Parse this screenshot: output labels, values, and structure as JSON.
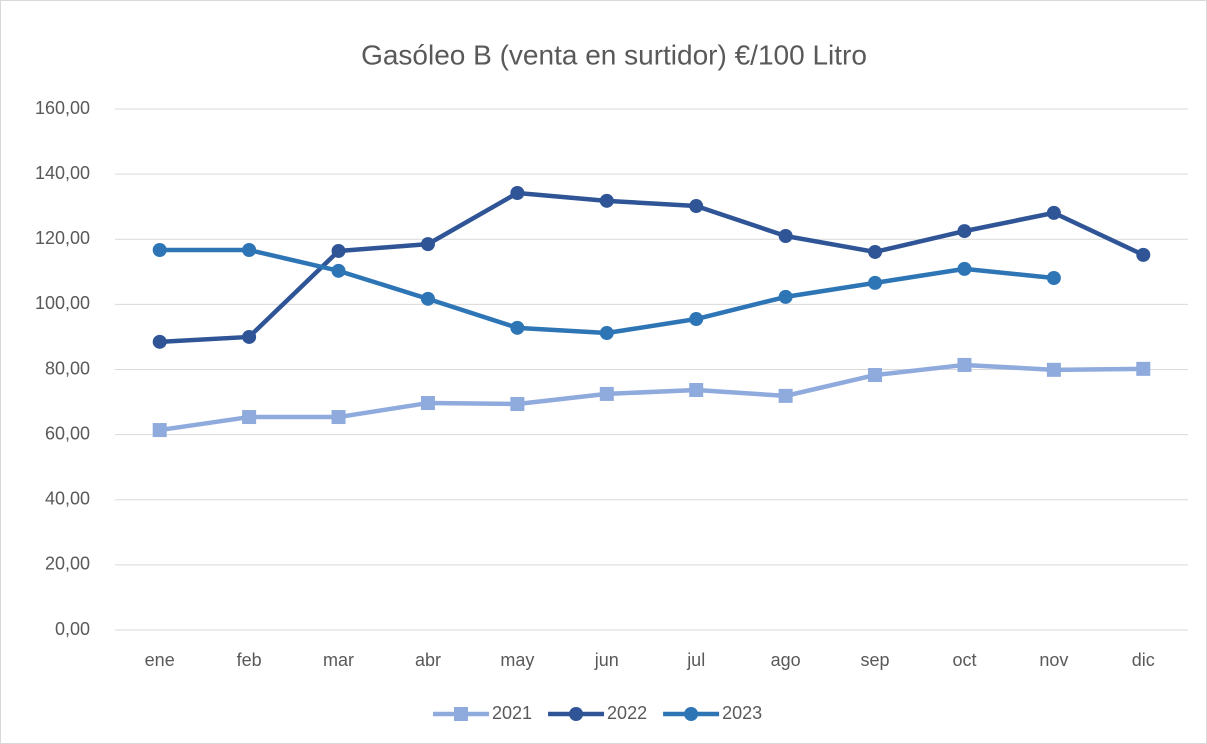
{
  "chart_data": {
    "type": "line",
    "title": "Gasóleo B (venta en surtidor) €/100 Litro",
    "categories": [
      "ene",
      "feb",
      "mar",
      "abr",
      "may",
      "jun",
      "jul",
      "ago",
      "sep",
      "oct",
      "nov",
      "dic"
    ],
    "series": [
      {
        "name": "2021",
        "color": "#8faadc",
        "marker": "square",
        "values": [
          61.4,
          65.4,
          65.4,
          69.7,
          69.4,
          72.5,
          73.7,
          71.9,
          78.3,
          81.4,
          79.9,
          80.2
        ]
      },
      {
        "name": "2022",
        "color": "#2f5597",
        "marker": "circle",
        "values": [
          88.5,
          90.0,
          116.4,
          118.5,
          134.2,
          131.8,
          130.2,
          121.0,
          116.1,
          122.5,
          128.1,
          115.2
        ]
      },
      {
        "name": "2023",
        "color": "#2e75b6",
        "marker": "circle",
        "values": [
          116.7,
          116.7,
          110.3,
          101.7,
          92.8,
          91.2,
          95.5,
          102.3,
          106.6,
          110.9,
          108.1,
          null
        ]
      }
    ],
    "ylim": [
      0,
      160
    ],
    "yticks": [
      {
        "value": 0,
        "label": "0,00"
      },
      {
        "value": 20,
        "label": "20,00"
      },
      {
        "value": 40,
        "label": "40,00"
      },
      {
        "value": 60,
        "label": "60,00"
      },
      {
        "value": 80,
        "label": "80,00"
      },
      {
        "value": 100,
        "label": "100,00"
      },
      {
        "value": 120,
        "label": "120,00"
      },
      {
        "value": 140,
        "label": "140,00"
      },
      {
        "value": 160,
        "label": "160,00"
      }
    ],
    "grid": true,
    "legend": "bottom"
  }
}
